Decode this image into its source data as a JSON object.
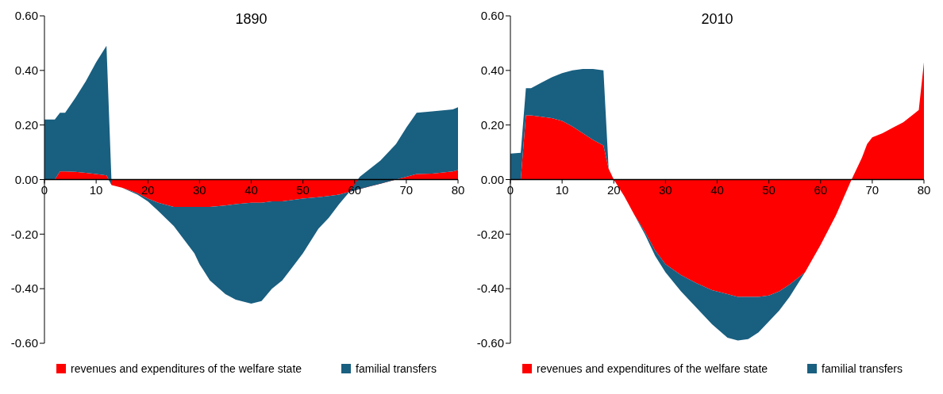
{
  "chart_data": [
    {
      "type": "area",
      "title": "1890",
      "stacked": true,
      "legend": "bottom",
      "ylim": [
        -0.6,
        0.6
      ],
      "yticks": [
        {
          "value": -0.6,
          "label": "-0.60"
        },
        {
          "value": -0.4,
          "label": "-0.40"
        },
        {
          "value": -0.2,
          "label": "-0.20"
        },
        {
          "value": 0,
          "label": "0.00"
        },
        {
          "value": 0.2,
          "label": "0.20"
        },
        {
          "value": 0.4,
          "label": "0.40"
        },
        {
          "value": 0.6,
          "label": "0.60"
        }
      ],
      "xlim": [
        0,
        80
      ],
      "xticks": [
        0,
        10,
        20,
        30,
        40,
        50,
        60,
        70,
        80
      ],
      "x": [
        0,
        2,
        3,
        4,
        6,
        8,
        10,
        12,
        13,
        15,
        18,
        20,
        22,
        25,
        27,
        29,
        30,
        32,
        35,
        37,
        40,
        42,
        44,
        46,
        48,
        50,
        53,
        55,
        57,
        59,
        61,
        63,
        65,
        68,
        70,
        72,
        75,
        79,
        80
      ],
      "series": [
        {
          "name": "revenues and expenditures of the welfare state",
          "color": "#ff0000",
          "values": [
            0,
            0,
            0.03,
            0.03,
            0.028,
            0.025,
            0.02,
            0.015,
            -0.02,
            -0.03,
            -0.05,
            -0.07,
            -0.085,
            -0.1,
            -0.1,
            -0.1,
            -0.1,
            -0.1,
            -0.095,
            -0.09,
            -0.085,
            -0.085,
            -0.08,
            -0.08,
            -0.075,
            -0.07,
            -0.065,
            -0.06,
            -0.055,
            -0.045,
            -0.035,
            -0.025,
            -0.015,
            0,
            0.01,
            0.02,
            0.022,
            0.03,
            0.035
          ]
        },
        {
          "name": "familial transfers",
          "color": "#195f80",
          "values": [
            0.22,
            0.22,
            0.215,
            0.215,
            0.272,
            0.335,
            0.41,
            0.475,
            0,
            0,
            -0.005,
            -0.01,
            -0.03,
            -0.07,
            -0.12,
            -0.17,
            -0.21,
            -0.27,
            -0.325,
            -0.35,
            -0.37,
            -0.36,
            -0.32,
            -0.29,
            -0.245,
            -0.2,
            -0.115,
            -0.08,
            -0.035,
            0,
            0.045,
            0.065,
            0.085,
            0.13,
            0.18,
            0.225,
            0.228,
            0.227,
            0.23
          ]
        }
      ]
    },
    {
      "type": "area",
      "title": "2010",
      "stacked": true,
      "legend": "bottom",
      "ylim": [
        -0.6,
        0.6
      ],
      "yticks": [
        {
          "value": -0.6,
          "label": "-0.60"
        },
        {
          "value": -0.4,
          "label": "-0.40"
        },
        {
          "value": -0.2,
          "label": "-0.20"
        },
        {
          "value": 0,
          "label": "0.00"
        },
        {
          "value": 0.2,
          "label": "0.20"
        },
        {
          "value": 0.4,
          "label": "0.40"
        },
        {
          "value": 0.6,
          "label": "0.60"
        }
      ],
      "xlim": [
        0,
        80
      ],
      "xticks": [
        0,
        10,
        20,
        30,
        40,
        50,
        60,
        70,
        80
      ],
      "x": [
        0,
        2,
        3,
        4,
        6,
        8,
        10,
        12,
        14,
        16,
        18,
        19,
        20,
        22,
        24,
        26,
        28,
        30,
        33,
        36,
        39,
        42,
        44,
        46,
        48,
        50,
        52,
        54,
        57,
        60,
        63,
        66,
        68,
        69,
        70,
        72,
        74,
        76,
        78,
        79,
        80
      ],
      "series": [
        {
          "name": "revenues and expenditures of the welfare state",
          "color": "#ff0000",
          "values": [
            0,
            0,
            0.235,
            0.235,
            0.23,
            0.225,
            0.215,
            0.195,
            0.17,
            0.145,
            0.125,
            0.04,
            0,
            -0.06,
            -0.13,
            -0.19,
            -0.26,
            -0.31,
            -0.35,
            -0.38,
            -0.405,
            -0.42,
            -0.43,
            -0.43,
            -0.43,
            -0.425,
            -0.41,
            -0.385,
            -0.34,
            -0.24,
            -0.13,
            0,
            0.08,
            0.13,
            0.155,
            0.17,
            0.19,
            0.21,
            0.24,
            0.255,
            0.43
          ]
        },
        {
          "name": "familial transfers",
          "color": "#195f80",
          "values": [
            0.095,
            0.098,
            0.1,
            0.1,
            0.125,
            0.15,
            0.175,
            0.205,
            0.235,
            0.26,
            0.275,
            0,
            0,
            0,
            0,
            -0.01,
            -0.02,
            -0.03,
            -0.06,
            -0.09,
            -0.125,
            -0.16,
            -0.16,
            -0.155,
            -0.13,
            -0.095,
            -0.07,
            -0.045,
            0,
            0,
            0,
            0,
            0,
            0,
            0,
            0,
            0,
            0,
            0,
            0,
            0
          ]
        }
      ]
    }
  ]
}
